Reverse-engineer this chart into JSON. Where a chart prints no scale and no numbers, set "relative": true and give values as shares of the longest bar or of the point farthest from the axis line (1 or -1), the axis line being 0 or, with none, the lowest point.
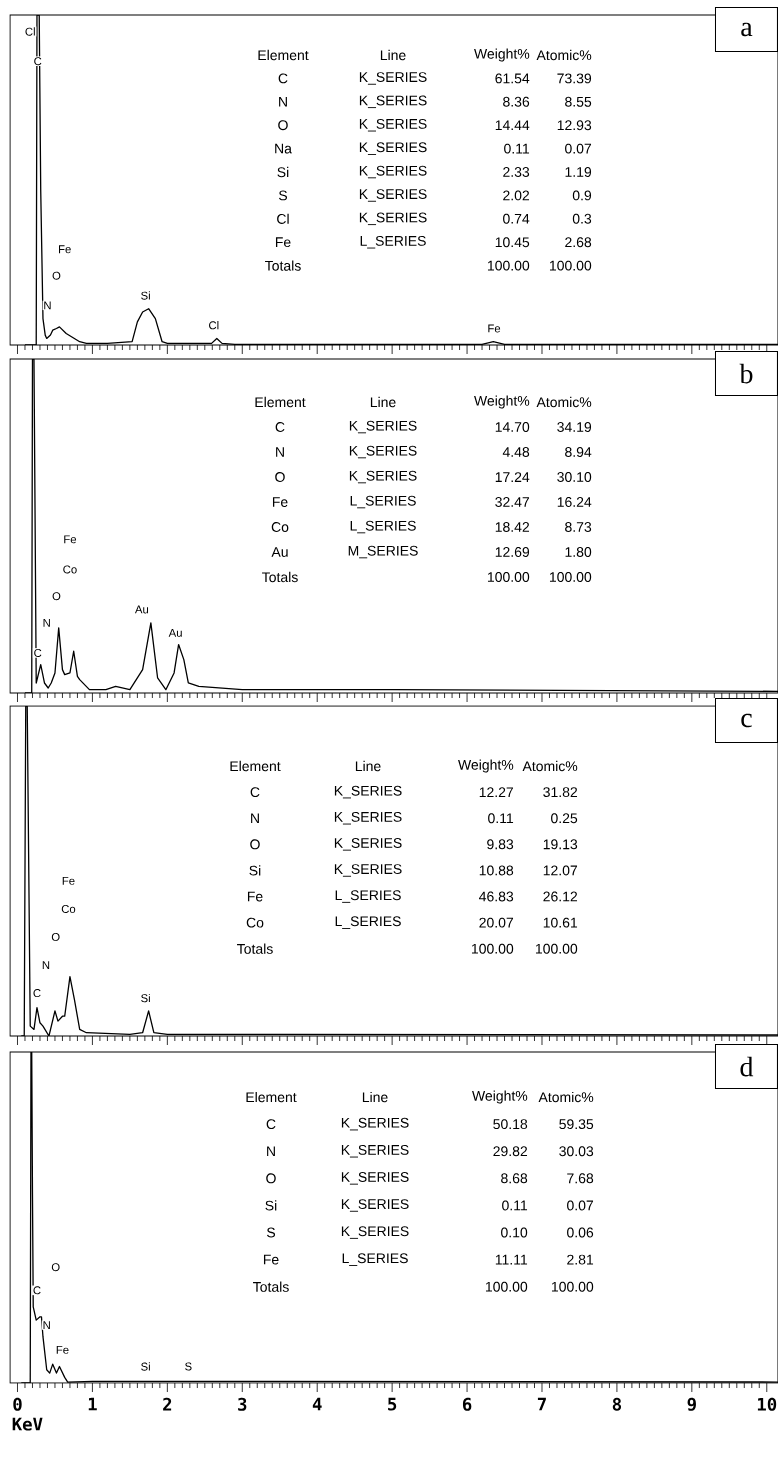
{
  "chart_data": [
    {
      "type": "line",
      "title": "a",
      "relative": true,
      "xlim": [
        -0.1,
        10.15
      ],
      "xticks": [
        0,
        1,
        2,
        3,
        4,
        5,
        6,
        7,
        8,
        9,
        10
      ],
      "tick_labels": false,
      "x": [
        0.1,
        0.25,
        0.26,
        0.29,
        0.31,
        0.34,
        0.37,
        0.39,
        0.44,
        0.47,
        0.52,
        0.56,
        0.65,
        0.83,
        0.92,
        1.2,
        1.53,
        1.6,
        1.67,
        1.75,
        1.84,
        1.93,
        2.0,
        2.5,
        2.59,
        2.66,
        2.73,
        2.9,
        5.0,
        6.2,
        6.35,
        6.5,
        7.5,
        10.15
      ],
      "series": [
        {
          "color": "#000000",
          "values": [
            0,
            0,
            1,
            1,
            0.47,
            0.08,
            0.03,
            0.02,
            0.03,
            0.045,
            0.05,
            0.055,
            0.035,
            0.01,
            0.005,
            0.005,
            0.01,
            0.07,
            0.1,
            0.11,
            0.08,
            0.01,
            0.005,
            0.005,
            0.005,
            0.02,
            0.005,
            0.002,
            0.002,
            0.002,
            0.01,
            0.002,
            0.002,
            0.002
          ]
        }
      ],
      "annotations": [
        "Element",
        "Line",
        "Weight%",
        "Atomic%",
        "C",
        "K_SERIES",
        "61.54",
        "73.39",
        "N",
        "K_SERIES",
        "8.36",
        "8.55",
        "O",
        "K_SERIES",
        "14.44",
        "12.93",
        "Na",
        "K_SERIES",
        "0.11",
        "0.07",
        "Si",
        "K_SERIES",
        "2.33",
        "1.19",
        "S",
        "K_SERIES",
        "2.02",
        "0.9",
        "Cl",
        "K_SERIES",
        "0.74",
        "0.3",
        "Fe",
        "L_SERIES",
        "10.45",
        "2.68",
        "Totals",
        "100.00",
        "100.00",
        "Cl",
        "C",
        "Fe",
        "O",
        "N",
        "Si",
        "Cl",
        "Fe"
      ]
    },
    {
      "type": "line",
      "title": "b",
      "relative": true,
      "xlim": [
        -0.1,
        10.15
      ],
      "xticks": [
        0,
        1,
        2,
        3,
        4,
        5,
        6,
        7,
        8,
        9,
        10
      ],
      "tick_labels": false,
      "x": [
        0.1,
        0.19,
        0.2,
        0.22,
        0.25,
        0.31,
        0.36,
        0.41,
        0.45,
        0.5,
        0.55,
        0.6,
        0.63,
        0.7,
        0.75,
        0.8,
        0.83,
        0.96,
        1.18,
        1.31,
        1.5,
        1.67,
        1.78,
        1.87,
        1.98,
        2.09,
        2.15,
        2.22,
        2.28,
        2.42,
        3.0,
        4.0,
        5.0,
        10.15
      ],
      "series": [
        {
          "color": "#000000",
          "values": [
            0,
            0,
            1,
            1,
            0.03,
            0.085,
            0.03,
            0.015,
            0.03,
            0.06,
            0.195,
            0.07,
            0.055,
            0.06,
            0.125,
            0.05,
            0.04,
            0.01,
            0.01,
            0.02,
            0.01,
            0.07,
            0.21,
            0.045,
            0.01,
            0.06,
            0.145,
            0.1,
            0.03,
            0.02,
            0.01,
            0.01,
            0.01,
            0.005
          ]
        }
      ],
      "annotations": [
        "Element",
        "Line",
        "Weight%",
        "Atomic%",
        "C",
        "K_SERIES",
        "14.70",
        "34.19",
        "N",
        "K_SERIES",
        "4.48",
        "8.94",
        "O",
        "K_SERIES",
        "17.24",
        "30.10",
        "Fe",
        "L_SERIES",
        "32.47",
        "16.24",
        "Co",
        "L_SERIES",
        "18.42",
        "8.73",
        "Au",
        "M_SERIES",
        "12.69",
        "1.80",
        "Totals",
        "100.00",
        "100.00",
        "Fe",
        "Co",
        "O",
        "N",
        "C",
        "Au",
        "Au"
      ]
    },
    {
      "type": "line",
      "title": "c",
      "relative": true,
      "xlim": [
        -0.1,
        10.15
      ],
      "xticks": [
        0,
        1,
        2,
        3,
        4,
        5,
        6,
        7,
        8,
        9,
        10
      ],
      "tick_labels": false,
      "x": [
        0.05,
        0.09,
        0.11,
        0.13,
        0.17,
        0.22,
        0.26,
        0.3,
        0.34,
        0.42,
        0.5,
        0.54,
        0.6,
        0.63,
        0.7,
        0.76,
        0.83,
        0.92,
        1.5,
        1.67,
        1.75,
        1.82,
        2.0,
        3.5,
        10.15
      ],
      "series": [
        {
          "color": "#000000",
          "values": [
            0,
            0,
            1,
            1,
            0.03,
            0.02,
            0.086,
            0.04,
            0.03,
            0.0,
            0.076,
            0.045,
            0.06,
            0.06,
            0.18,
            0.11,
            0.02,
            0.01,
            0.005,
            0.01,
            0.076,
            0.01,
            0.005,
            0.005,
            0.003
          ]
        }
      ],
      "annotations": [
        "Element",
        "Line",
        "Weight%",
        "Atomic%",
        "C",
        "K_SERIES",
        "12.27",
        "31.82",
        "N",
        "K_SERIES",
        "0.11",
        "0.25",
        "O",
        "K_SERIES",
        "9.83",
        "19.13",
        "Si",
        "K_SERIES",
        "10.88",
        "12.07",
        "Fe",
        "L_SERIES",
        "46.83",
        "26.12",
        "Co",
        "L_SERIES",
        "20.07",
        "10.61",
        "Totals",
        "100.00",
        "100.00",
        "Fe",
        "Co",
        "O",
        "N",
        "C",
        "Si"
      ]
    },
    {
      "type": "line",
      "title": "d",
      "relative": true,
      "xlim": [
        -0.1,
        10.15
      ],
      "xticks": [
        0,
        1,
        2,
        3,
        4,
        5,
        6,
        7,
        8,
        9,
        10
      ],
      "xlabel": "KeV",
      "x": [
        0.05,
        0.17,
        0.18,
        0.19,
        0.2,
        0.21,
        0.25,
        0.3,
        0.32,
        0.34,
        0.39,
        0.43,
        0.47,
        0.52,
        0.56,
        0.63,
        0.67,
        1.0,
        2.8,
        10.15
      ],
      "series": [
        {
          "color": "#000000",
          "values": [
            0,
            0,
            1,
            1,
            0.57,
            0.23,
            0.19,
            0.2,
            0.2,
            0.14,
            0.04,
            0.03,
            0.057,
            0.03,
            0.05,
            0.017,
            0.003,
            0.005,
            0.005,
            0.003
          ]
        }
      ],
      "annotations": [
        "Element",
        "Line",
        "Weight%",
        "Atomic%",
        "C",
        "K_SERIES",
        "50.18",
        "59.35",
        "N",
        "K_SERIES",
        "29.82",
        "30.03",
        "O",
        "K_SERIES",
        "8.68",
        "7.68",
        "Si",
        "K_SERIES",
        "0.11",
        "0.07",
        "S",
        "K_SERIES",
        "0.10",
        "0.06",
        "Fe",
        "L_SERIES",
        "11.11",
        "2.81",
        "Totals",
        "100.00",
        "100.00",
        "O",
        "C",
        "N",
        "Fe",
        "Si",
        "S"
      ]
    }
  ]
}
